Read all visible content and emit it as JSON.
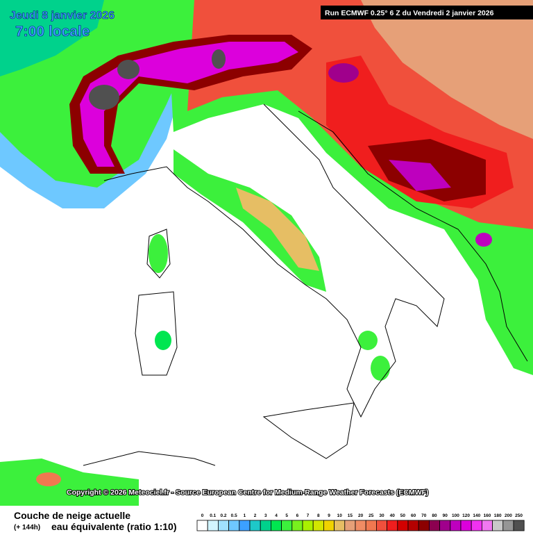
{
  "header": {
    "date": "Jeudi 8 janvier 2026",
    "time": "7:00 locale",
    "run": "Run ECMWF 0.25° 6 Z du Vendredi 2 janvier 2026"
  },
  "copyright": "Copyright © 2026 Meteociel.fr - Source European Centre for Medium-Range Weather Forecasts (ECMWF)",
  "legend": {
    "title": "Couche de neige actuelle",
    "lead": "(+ 144h)",
    "subtitle": "eau équivalente (ratio 1:10)",
    "levels": [
      0,
      0.1,
      0.2,
      0.5,
      1,
      2,
      3,
      4,
      5,
      6,
      7,
      8,
      9,
      10,
      15,
      20,
      25,
      30,
      40,
      50,
      60,
      70,
      80,
      90,
      100,
      120,
      140,
      160,
      180,
      200,
      250
    ],
    "colors": [
      "#ffffff",
      "#d2f5ff",
      "#a0e1ff",
      "#6ec8ff",
      "#3ca0ff",
      "#1ec8c8",
      "#00d28c",
      "#00e650",
      "#3cf03c",
      "#78f01e",
      "#aaf000",
      "#d2e600",
      "#f0d200",
      "#e6be64",
      "#e6a078",
      "#f08c64",
      "#f07850",
      "#f0503c",
      "#f01e1e",
      "#d20000",
      "#b40000",
      "#8c0000",
      "#8c0050",
      "#a0008c",
      "#be00be",
      "#dc00dc",
      "#f032f0",
      "#f078f0",
      "#c8c8c8",
      "#969696",
      "#505050"
    ]
  }
}
